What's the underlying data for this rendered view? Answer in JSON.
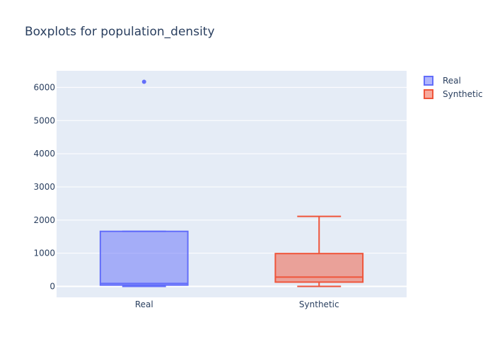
{
  "chart_data": {
    "type": "box",
    "title": "Boxplots for population_density",
    "xlabel": "",
    "ylabel": "",
    "categories": [
      "Real",
      "Synthetic"
    ],
    "ylim": [
      -330,
      6500
    ],
    "y_ticks": [
      0,
      1000,
      2000,
      3000,
      4000,
      5000,
      6000
    ],
    "grid": true,
    "legend_position": "top-right",
    "series": [
      {
        "name": "Real",
        "color": "#636efa",
        "whisker_low": 0,
        "q1": 40,
        "median": 90,
        "q3": 1660,
        "whisker_high": 1660,
        "outliers": [
          6170
        ]
      },
      {
        "name": "Synthetic",
        "color": "#ef553b",
        "whisker_low": 0,
        "q1": 130,
        "median": 280,
        "q3": 990,
        "whisker_high": 2110,
        "outliers": []
      }
    ]
  }
}
